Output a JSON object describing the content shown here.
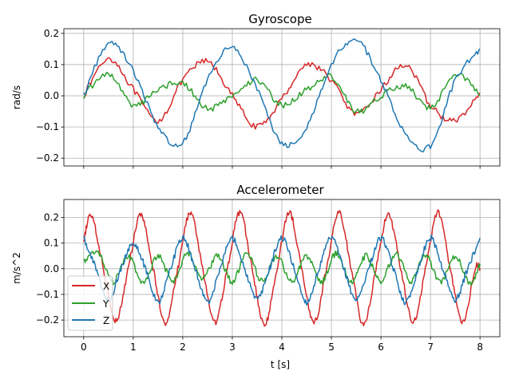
{
  "chart_data": [
    {
      "type": "line",
      "title": "Gyroscope",
      "xlabel": "",
      "ylabel": "rad/s",
      "xlim": [
        -0.4,
        8.4
      ],
      "ylim": [
        -0.225,
        0.215
      ],
      "xticks": [
        0,
        1,
        2,
        3,
        4,
        5,
        6,
        7,
        8
      ],
      "xtick_labels_visible": false,
      "yticks": [
        -0.2,
        -0.1,
        0.0,
        0.1,
        0.2
      ],
      "ytick_labels": [
        "−0.2",
        "−0.1",
        "0.0",
        "0.1",
        "0.2"
      ],
      "grid": true,
      "legend": null,
      "series": [
        {
          "color": "#d62728",
          "x": [
            0,
            0.5,
            1,
            1.5,
            2,
            2.5,
            3,
            3.5,
            4,
            4.5,
            5,
            5.5,
            6,
            6.5,
            7,
            7.5,
            8
          ],
          "y": [
            0.0,
            0.12,
            0.02,
            -0.08,
            0.05,
            0.11,
            0.0,
            -0.1,
            -0.01,
            0.1,
            0.05,
            -0.06,
            0.02,
            0.1,
            -0.03,
            -0.08,
            0.01
          ]
        },
        {
          "color": "#2ca02c",
          "x": [
            0,
            0.5,
            1,
            1.5,
            2,
            2.5,
            3,
            3.5,
            4,
            4.5,
            5,
            5.5,
            6,
            6.5,
            7,
            7.5,
            8
          ],
          "y": [
            0.0,
            0.07,
            -0.03,
            0.02,
            0.04,
            -0.04,
            0.0,
            0.05,
            -0.03,
            0.02,
            0.06,
            -0.05,
            0.0,
            0.03,
            -0.04,
            0.07,
            0.0
          ]
        },
        {
          "color": "#1f77b4",
          "x": [
            0,
            0.5,
            1,
            1.5,
            2,
            2.5,
            3,
            3.5,
            4,
            4.5,
            5,
            5.5,
            6,
            6.5,
            7,
            7.5,
            8
          ],
          "y": [
            0.0,
            0.17,
            0.08,
            -0.1,
            -0.15,
            0.05,
            0.16,
            0.02,
            -0.15,
            -0.1,
            0.1,
            0.18,
            0.05,
            -0.12,
            -0.16,
            0.05,
            0.15
          ]
        }
      ]
    },
    {
      "type": "line",
      "title": "Accelerometer",
      "xlabel": "t [s]",
      "ylabel": "m/s^2",
      "xlim": [
        -0.4,
        8.4
      ],
      "ylim": [
        -0.265,
        0.27
      ],
      "xticks": [
        0,
        1,
        2,
        3,
        4,
        5,
        6,
        7,
        8
      ],
      "xtick_labels": [
        "0",
        "1",
        "2",
        "3",
        "4",
        "5",
        "6",
        "7",
        "8"
      ],
      "yticks": [
        -0.2,
        -0.1,
        0.0,
        0.1,
        0.2
      ],
      "ytick_labels": [
        "−0.2",
        "−0.1",
        "0.0",
        "0.1",
        "0.2"
      ],
      "grid": true,
      "legend": "lower left",
      "series": [
        {
          "name": "X",
          "color": "#d62728",
          "x": [
            0,
            0.15,
            0.4,
            0.65,
            0.9,
            1.15,
            1.4,
            1.65,
            1.9,
            2.15,
            2.4,
            2.65,
            2.9,
            3.15,
            3.4,
            3.65,
            3.9,
            4.15,
            4.4,
            4.65,
            4.9,
            5.15,
            5.4,
            5.65,
            5.9,
            6.15,
            6.4,
            6.65,
            6.9,
            7.15,
            7.4,
            7.65,
            7.9,
            8.0
          ],
          "y": [
            0.1,
            0.21,
            0.0,
            -0.2,
            0.0,
            0.21,
            0.0,
            -0.21,
            0.0,
            0.22,
            0.0,
            -0.21,
            0.0,
            0.22,
            0.0,
            -0.22,
            0.0,
            0.22,
            0.0,
            -0.21,
            0.0,
            0.22,
            0.0,
            -0.22,
            0.0,
            0.21,
            0.0,
            -0.21,
            0.0,
            0.22,
            0.0,
            -0.21,
            0.0,
            0.0
          ]
        },
        {
          "name": "Y",
          "color": "#2ca02c",
          "x": [
            0,
            0.3,
            0.6,
            0.9,
            1.2,
            1.5,
            1.8,
            2.1,
            2.4,
            2.7,
            3.0,
            3.3,
            3.6,
            3.9,
            4.2,
            4.5,
            4.8,
            5.1,
            5.4,
            5.7,
            6.0,
            6.3,
            6.6,
            6.9,
            7.2,
            7.5,
            7.8,
            8.0
          ],
          "y": [
            0.03,
            0.06,
            -0.05,
            0.05,
            -0.06,
            0.05,
            -0.05,
            0.06,
            -0.04,
            0.05,
            -0.05,
            0.06,
            -0.05,
            0.05,
            -0.05,
            0.05,
            -0.05,
            0.06,
            -0.05,
            0.05,
            -0.05,
            0.06,
            -0.05,
            0.05,
            -0.05,
            0.05,
            -0.06,
            0.02
          ]
        },
        {
          "name": "Z",
          "color": "#1f77b4",
          "x": [
            0,
            0.25,
            0.5,
            0.75,
            1.0,
            1.25,
            1.5,
            1.75,
            2.0,
            2.25,
            2.5,
            2.75,
            3.0,
            3.25,
            3.5,
            3.75,
            4.0,
            4.25,
            4.5,
            4.75,
            5.0,
            5.25,
            5.5,
            5.75,
            6.0,
            6.25,
            6.5,
            6.75,
            7.0,
            7.25,
            7.5,
            7.75,
            8.0
          ],
          "y": [
            0.12,
            0.0,
            -0.12,
            0.0,
            0.1,
            0.0,
            -0.13,
            0.0,
            0.12,
            0.0,
            -0.13,
            0.0,
            0.12,
            0.0,
            -0.12,
            0.0,
            0.12,
            0.0,
            -0.13,
            0.0,
            0.12,
            0.0,
            -0.12,
            0.0,
            0.12,
            0.0,
            -0.13,
            0.0,
            0.12,
            0.0,
            -0.12,
            0.0,
            0.12
          ]
        }
      ]
    }
  ]
}
